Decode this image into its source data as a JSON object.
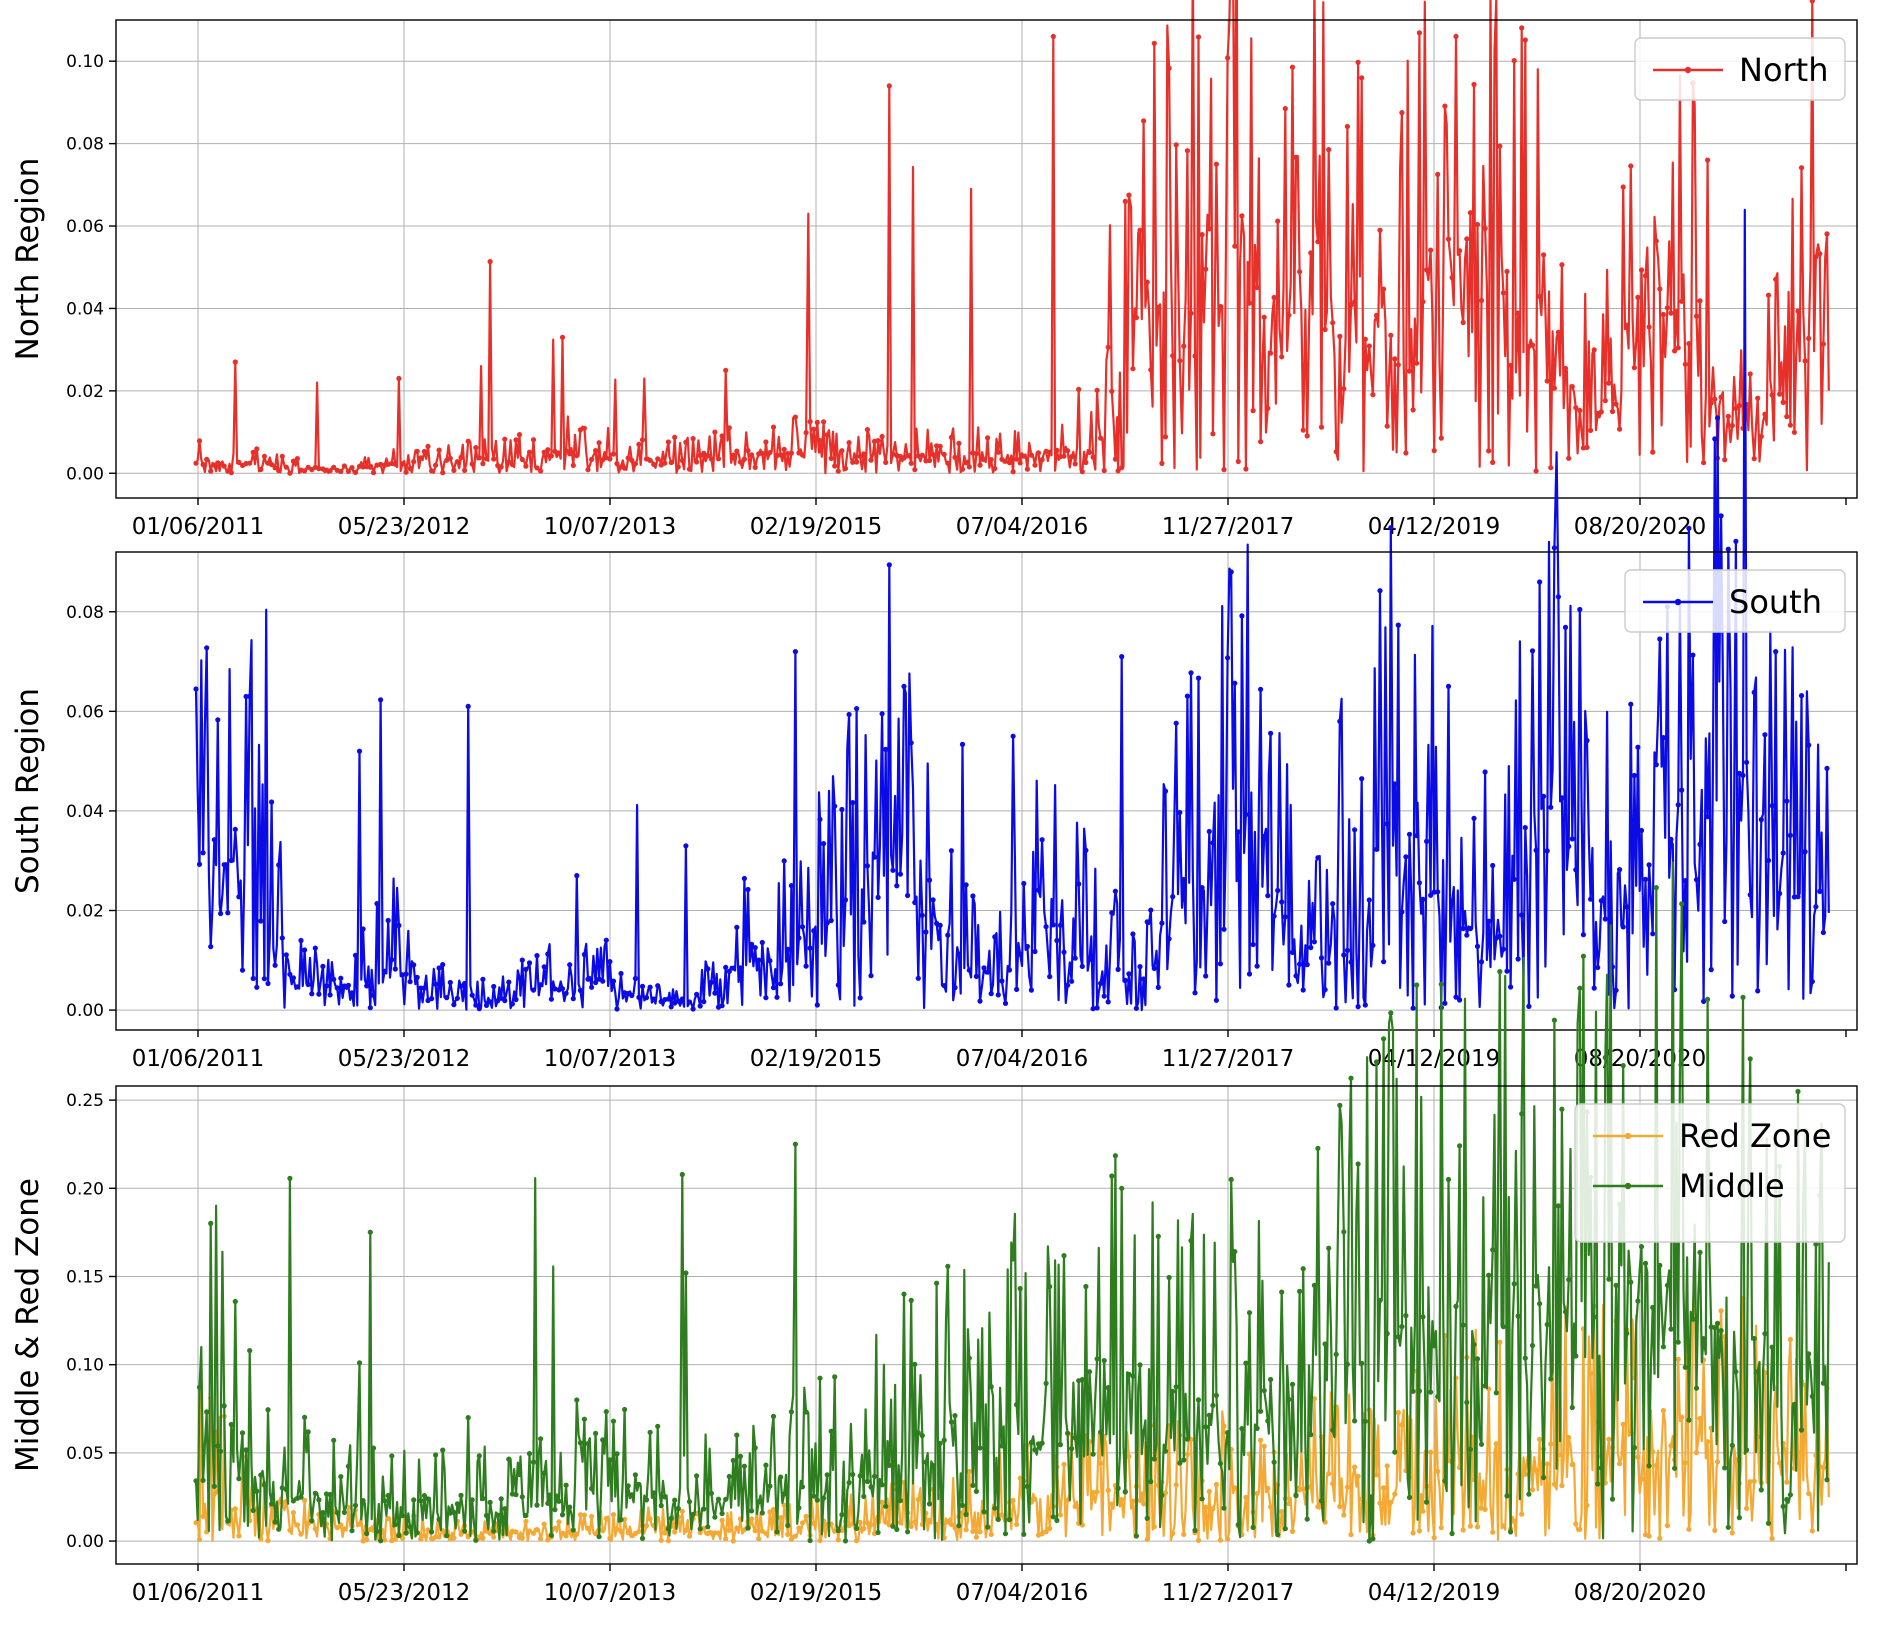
{
  "chart_data": [
    {
      "type": "line",
      "ylabel": "North Region",
      "x_tick_labels": [
        "01/06/2011",
        "05/23/2012",
        "10/07/2013",
        "02/19/2015",
        "07/04/2016",
        "11/27/2017",
        "04/12/2019",
        "08/20/2020"
      ],
      "x_range": [
        "2010-07",
        "2022-11"
      ],
      "xlim": [
        "2010-08-01",
        "2022-11-01"
      ],
      "ylim": [
        -0.006,
        0.11
      ],
      "y_ticks": [
        0.0,
        0.02,
        0.04,
        0.06,
        0.08,
        0.1
      ],
      "y_tick_labels": [
        "0.00",
        "0.02",
        "0.04",
        "0.06",
        "0.08",
        "0.10"
      ],
      "grid": true,
      "legend_position": "top-right",
      "x_month_index": [
        0,
        6,
        12,
        18,
        24,
        30,
        36,
        42,
        48,
        54,
        60,
        66,
        70,
        72,
        76,
        78,
        81,
        84,
        87,
        90,
        94,
        96,
        100,
        102,
        105,
        108,
        111,
        114,
        117,
        120,
        123,
        126,
        129,
        132,
        135,
        138
      ],
      "series": [
        {
          "name": "North",
          "color": "#e8302a",
          "values": [
            0.003,
            0.002,
            0.001,
            0.003,
            0.003,
            0.005,
            0.003,
            0.004,
            0.005,
            0.004,
            0.004,
            0.004,
            0.005,
            0.006,
            0.035,
            0.04,
            0.05,
            0.052,
            0.035,
            0.048,
            0.035,
            0.038,
            0.043,
            0.05,
            0.042,
            0.036,
            0.015,
            0.02,
            0.048,
            0.04,
            0.012,
            0.015,
            0.04,
            0.05,
            0.015,
            0.03
          ],
          "peaks": [
            0.027,
            0.022,
            0.023,
            0.026,
            0.033,
            0.023,
            0.025,
            0.063,
            0.094,
            0.069,
            0.106,
            0.04,
            0.075,
            0.077,
            0.059,
            0.04,
            0.053,
            0.035,
            0.076,
            0.044
          ]
        }
      ]
    },
    {
      "type": "line",
      "ylabel": "South Region",
      "x_tick_labels": [
        "01/06/2011",
        "05/23/2012",
        "10/07/2013",
        "02/19/2015",
        "07/04/2016",
        "11/27/2017",
        "04/12/2019",
        "08/20/2020"
      ],
      "x_range": [
        "2010-07",
        "2022-11"
      ],
      "xlim": [
        "2010-08-01",
        "2022-11-01"
      ],
      "ylim": [
        -0.004,
        0.092
      ],
      "y_ticks": [
        0.0,
        0.02,
        0.04,
        0.06,
        0.08
      ],
      "y_tick_labels": [
        "0.00",
        "0.02",
        "0.04",
        "0.06",
        "0.08"
      ],
      "grid": true,
      "legend_position": "top-right",
      "x_month_index": [
        0,
        4,
        8,
        12,
        16,
        20,
        24,
        28,
        32,
        36,
        40,
        44,
        48,
        52,
        56,
        60,
        64,
        68,
        72,
        76,
        80,
        84,
        88,
        92,
        96,
        100,
        104,
        108,
        112,
        116,
        120,
        124,
        128,
        132,
        136,
        138
      ],
      "series": [
        {
          "name": "South",
          "color": "#0b0be6",
          "values": [
            0.025,
            0.03,
            0.005,
            0.005,
            0.01,
            0.003,
            0.002,
            0.005,
            0.006,
            0.002,
            0.002,
            0.01,
            0.012,
            0.02,
            0.035,
            0.015,
            0.005,
            0.02,
            0.012,
            0.005,
            0.03,
            0.04,
            0.015,
            0.01,
            0.04,
            0.025,
            0.01,
            0.045,
            0.03,
            0.02,
            0.04,
            0.06,
            0.03,
            0.015,
            0.02,
            0.01
          ],
          "peaks": [
            0.063,
            0.052,
            0.061,
            0.027,
            0.033,
            0.072,
            0.065,
            0.055,
            0.071,
            0.088,
            0.058,
            0.065,
            0.083,
            0.081,
            0.072
          ]
        }
      ]
    },
    {
      "type": "line",
      "ylabel": "Middle & Red Zone",
      "x_tick_labels": [
        "01/06/2011",
        "05/23/2012",
        "10/07/2013",
        "02/19/2015",
        "07/04/2016",
        "11/27/2017",
        "04/12/2019",
        "08/20/2020"
      ],
      "x_range": [
        "2010-07",
        "2022-11"
      ],
      "xlim": [
        "2010-08-01",
        "2022-11-01"
      ],
      "ylim": [
        -0.013,
        0.258
      ],
      "y_ticks": [
        0.0,
        0.05,
        0.1,
        0.15,
        0.2,
        0.25
      ],
      "y_tick_labels": [
        "0.00",
        "0.05",
        "0.10",
        "0.15",
        "0.20",
        "0.25"
      ],
      "grid": true,
      "legend_position": "top-right",
      "x_month_index": [
        0,
        6,
        12,
        18,
        24,
        30,
        36,
        42,
        48,
        54,
        60,
        66,
        72,
        78,
        84,
        90,
        96,
        102,
        108,
        114,
        120,
        126,
        132,
        138
      ],
      "series": [
        {
          "name": "Red Zone",
          "color": "#f4a935",
          "values": [
            0.035,
            0.01,
            0.008,
            0.005,
            0.005,
            0.006,
            0.007,
            0.006,
            0.008,
            0.01,
            0.015,
            0.02,
            0.025,
            0.03,
            0.025,
            0.03,
            0.035,
            0.05,
            0.045,
            0.055,
            0.06,
            0.045,
            0.04,
            0.03
          ]
        },
        {
          "name": "Middle",
          "color": "#2e7d1e",
          "values": [
            0.09,
            0.03,
            0.02,
            0.02,
            0.02,
            0.025,
            0.03,
            0.02,
            0.03,
            0.04,
            0.06,
            0.07,
            0.08,
            0.075,
            0.06,
            0.09,
            0.11,
            0.12,
            0.12,
            0.13,
            0.14,
            0.1,
            0.08,
            0.05
          ],
          "peaks": [
            0.108,
            0.101,
            0.07,
            0.08,
            0.152,
            0.225,
            0.14,
            0.16,
            0.2,
            0.205,
            0.247,
            0.205,
            0.19,
            0.145,
            0.225
          ]
        }
      ]
    }
  ]
}
